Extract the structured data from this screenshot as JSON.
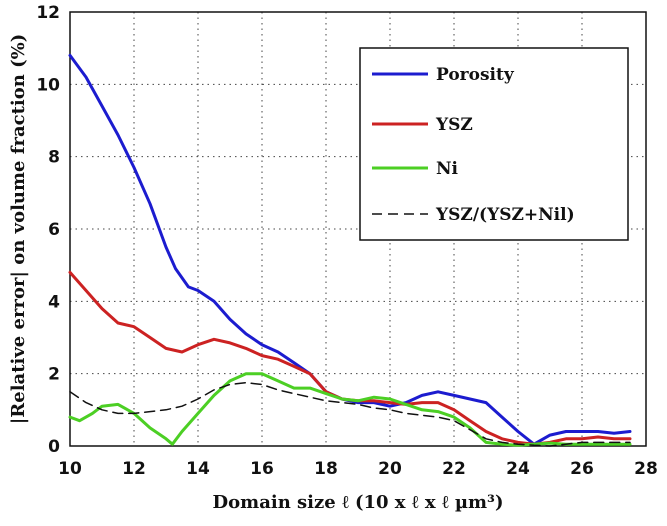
{
  "chart_data": {
    "type": "line",
    "xlabel": "Domain size ℓ (10 x ℓ x ℓ µm³)",
    "ylabel": "|Relative error| on volume fraction (%)",
    "xlim": [
      10,
      28
    ],
    "ylim": [
      0,
      12
    ],
    "xticks": [
      "10",
      "12",
      "14",
      "16",
      "18",
      "20",
      "22",
      "24",
      "26",
      "28"
    ],
    "yticks": [
      "0",
      "2",
      "4",
      "6",
      "8",
      "10",
      "12"
    ],
    "grid": true,
    "legend_position": "top-right",
    "series": [
      {
        "name": "Porosity",
        "color": "#1c1ccf",
        "style": "solid",
        "x": [
          10,
          10.5,
          11,
          11.5,
          12,
          12.5,
          13,
          13.3,
          13.7,
          14,
          14.5,
          15,
          15.5,
          16,
          16.5,
          17,
          17.5,
          18,
          18.5,
          19,
          19.5,
          20,
          20.5,
          21,
          21.5,
          22,
          22.5,
          23,
          23.5,
          24,
          24.5,
          25,
          25.5,
          26,
          26.5,
          27,
          27.5
        ],
        "y": [
          10.8,
          10.2,
          9.4,
          8.6,
          7.7,
          6.7,
          5.5,
          4.9,
          4.4,
          4.3,
          4.0,
          3.5,
          3.1,
          2.8,
          2.6,
          2.3,
          2.0,
          1.5,
          1.3,
          1.2,
          1.2,
          1.1,
          1.2,
          1.4,
          1.5,
          1.4,
          1.3,
          1.2,
          0.8,
          0.4,
          0.05,
          0.3,
          0.4,
          0.4,
          0.4,
          0.35,
          0.4
        ]
      },
      {
        "name": "YSZ",
        "color": "#cc2222",
        "style": "solid",
        "x": [
          10,
          10.5,
          11,
          11.5,
          12,
          12.5,
          13,
          13.5,
          14,
          14.5,
          15,
          15.5,
          16,
          16.5,
          17,
          17.5,
          18,
          18.5,
          19,
          19.5,
          20,
          20.5,
          21,
          21.5,
          22,
          22.5,
          23,
          23.5,
          24,
          24.5,
          25,
          25.5,
          26,
          26.5,
          27,
          27.5
        ],
        "y": [
          4.8,
          4.3,
          3.8,
          3.4,
          3.3,
          3.0,
          2.7,
          2.6,
          2.8,
          2.95,
          2.85,
          2.7,
          2.5,
          2.4,
          2.2,
          2.0,
          1.5,
          1.3,
          1.25,
          1.25,
          1.2,
          1.15,
          1.2,
          1.2,
          1.0,
          0.7,
          0.4,
          0.2,
          0.1,
          0.05,
          0.1,
          0.2,
          0.2,
          0.25,
          0.2,
          0.2
        ]
      },
      {
        "name": "Ni",
        "color": "#4ccf24",
        "style": "solid",
        "x": [
          10,
          10.3,
          10.7,
          11,
          11.5,
          12,
          12.5,
          13,
          13.2,
          13.5,
          14,
          14.5,
          15,
          15.5,
          16,
          16.5,
          17,
          17.5,
          18,
          18.5,
          19,
          19.5,
          20,
          20.5,
          21,
          21.5,
          22,
          22.5,
          23,
          23.5,
          24,
          24.5,
          25,
          25.5,
          26,
          26.5,
          27,
          27.5
        ],
        "y": [
          0.8,
          0.7,
          0.9,
          1.1,
          1.15,
          0.9,
          0.5,
          0.2,
          0.05,
          0.4,
          0.9,
          1.4,
          1.8,
          2.0,
          2.0,
          1.8,
          1.6,
          1.6,
          1.45,
          1.3,
          1.25,
          1.35,
          1.3,
          1.15,
          1.0,
          0.95,
          0.8,
          0.5,
          0.1,
          0.05,
          0.02,
          0.05,
          0.08,
          0.05,
          0.05,
          0.05,
          0.05,
          0.05
        ]
      },
      {
        "name": "YSZ/(YSZ+Nil)",
        "color": "#111111",
        "style": "dashed",
        "x": [
          10,
          10.5,
          11,
          11.5,
          12,
          12.5,
          13,
          13.5,
          14,
          14.5,
          15,
          15.5,
          16,
          16.5,
          17,
          17.5,
          18,
          18.5,
          19,
          19.5,
          20,
          20.5,
          21,
          21.5,
          22,
          22.5,
          23,
          23.5,
          24,
          24.5,
          25,
          25.5,
          26,
          26.5,
          27,
          27.5
        ],
        "y": [
          1.5,
          1.2,
          1.0,
          0.9,
          0.9,
          0.95,
          1.0,
          1.1,
          1.3,
          1.55,
          1.7,
          1.75,
          1.7,
          1.55,
          1.45,
          1.35,
          1.25,
          1.2,
          1.15,
          1.05,
          1.0,
          0.9,
          0.85,
          0.8,
          0.7,
          0.45,
          0.2,
          0.1,
          0.05,
          0.02,
          0.0,
          0.05,
          0.1,
          0.1,
          0.1,
          0.1
        ]
      }
    ]
  }
}
